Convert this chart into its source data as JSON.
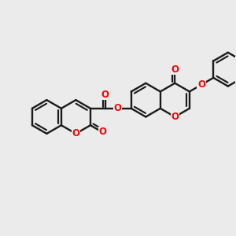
{
  "background_color": "#ebebeb",
  "bond_color": "#1a1a1a",
  "oxygen_color": "#ff0000",
  "line_width": 1.7,
  "figsize": [
    3.0,
    3.0
  ],
  "dpi": 100,
  "xlim": [
    0,
    10
  ],
  "ylim": [
    0,
    10
  ]
}
